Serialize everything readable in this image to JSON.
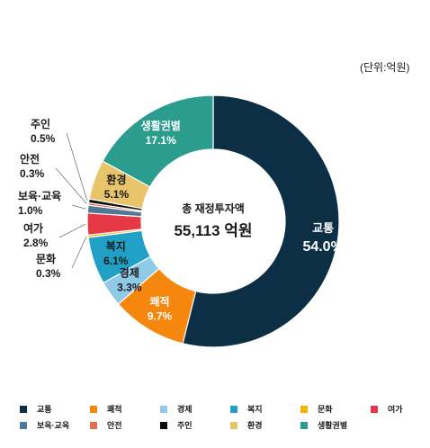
{
  "unit_label": "(단위:억원)",
  "chart_data": {
    "type": "donut",
    "center_title": "총 재정투자액",
    "center_value": "55,113 억원",
    "slices": [
      {
        "name": "교통",
        "value": 54.0,
        "label": "54.0%",
        "color": "#0d2f45"
      },
      {
        "name": "쾌적",
        "value": 9.7,
        "label": "9.7%",
        "color": "#f5870f"
      },
      {
        "name": "경제",
        "value": 3.3,
        "label": "3.3%",
        "color": "#8fcbe6"
      },
      {
        "name": "복지",
        "value": 6.1,
        "label": "6.1%",
        "color": "#21a0c6"
      },
      {
        "name": "문화",
        "value": 0.3,
        "label": "0.3%",
        "color": "#f3b400"
      },
      {
        "name": "여가",
        "value": 2.8,
        "label": "2.8%",
        "color": "#e63946"
      },
      {
        "name": "보육·교육",
        "value": 1.0,
        "label": "1.0%",
        "color": "#4f7894"
      },
      {
        "name": "안전",
        "value": 0.3,
        "label": "0.3%",
        "color": "#e46c52"
      },
      {
        "name": "주인",
        "value": 0.5,
        "label": "0.5%",
        "color": "#0a0a0a"
      },
      {
        "name": "환경",
        "value": 5.1,
        "label": "5.1%",
        "color": "#e8c46a"
      },
      {
        "name": "생활권별",
        "value": 17.1,
        "label": "17.1%",
        "color": "#2a9d8f"
      }
    ],
    "legend_placement": "bottom"
  }
}
